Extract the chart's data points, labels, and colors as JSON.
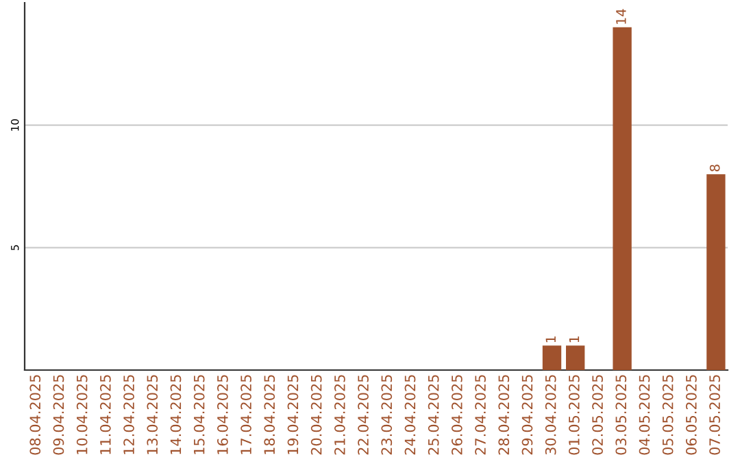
{
  "chart_data": {
    "type": "bar",
    "categories": [
      "08.04.2025",
      "09.04.2025",
      "10.04.2025",
      "11.04.2025",
      "12.04.2025",
      "13.04.2025",
      "14.04.2025",
      "15.04.2025",
      "16.04.2025",
      "17.04.2025",
      "18.04.2025",
      "19.04.2025",
      "20.04.2025",
      "21.04.2025",
      "22.04.2025",
      "23.04.2025",
      "24.04.2025",
      "25.04.2025",
      "26.04.2025",
      "27.04.2025",
      "28.04.2025",
      "29.04.2025",
      "30.04.2025",
      "01.05.2025",
      "02.05.2025",
      "03.05.2025",
      "04.05.2025",
      "05.05.2025",
      "06.05.2025",
      "07.05.2025"
    ],
    "values": [
      0,
      0,
      0,
      0,
      0,
      0,
      0,
      0,
      0,
      0,
      0,
      0,
      0,
      0,
      0,
      0,
      0,
      0,
      0,
      0,
      0,
      0,
      1,
      1,
      0,
      14,
      0,
      0,
      0,
      8
    ],
    "value_labels": [
      null,
      null,
      null,
      null,
      null,
      null,
      null,
      null,
      null,
      null,
      null,
      null,
      null,
      null,
      null,
      null,
      null,
      null,
      null,
      null,
      null,
      null,
      "1",
      "1",
      null,
      "14",
      null,
      null,
      null,
      "8"
    ],
    "color": "#a0522d",
    "ylim": [
      0,
      15
    ],
    "yticks": [
      5,
      10
    ],
    "grid": "y"
  }
}
